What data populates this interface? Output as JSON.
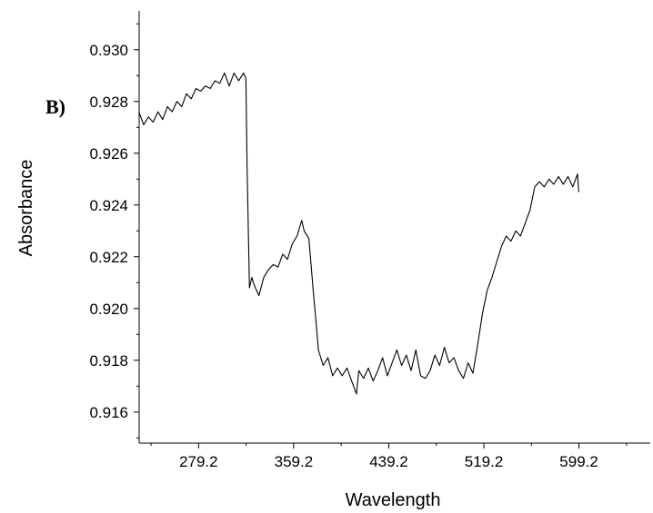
{
  "chart_data": {
    "type": "line",
    "title": "",
    "panel_label": "B)",
    "xlabel": "Wavelength",
    "ylabel": "Absorbance",
    "xlim": [
      229.2,
      659.2
    ],
    "ylim": [
      0.9148,
      0.9315
    ],
    "xticks": [
      279.2,
      359.2,
      439.2,
      519.2,
      599.2
    ],
    "xtick_labels": [
      "279.2",
      "359.2",
      "439.2",
      "519.2",
      "599.2"
    ],
    "yticks": [
      0.916,
      0.918,
      0.92,
      0.922,
      0.924,
      0.926,
      0.928,
      0.93
    ],
    "ytick_labels": [
      "0.916",
      "0.918",
      "0.920",
      "0.922",
      "0.924",
      "0.926",
      "0.928",
      "0.930"
    ],
    "grid": false,
    "legend": "none",
    "line_color": "#000000",
    "series": [
      {
        "x": [
          229,
          233,
          237,
          241,
          245,
          249,
          253,
          257,
          261,
          265,
          269,
          273,
          277,
          281,
          285,
          289,
          293,
          297,
          301,
          305,
          309,
          313,
          317,
          319,
          320,
          322,
          324,
          326,
          330,
          334,
          338,
          342,
          346,
          350,
          354,
          358,
          362,
          366,
          368,
          372,
          376,
          378,
          380,
          384,
          388,
          392,
          396,
          400,
          404,
          408,
          412,
          414,
          418,
          422,
          426,
          430,
          434,
          438,
          442,
          446,
          450,
          454,
          458,
          462,
          466,
          470,
          474,
          478,
          482,
          486,
          490,
          494,
          498,
          502,
          506,
          510,
          514,
          518,
          522,
          526,
          530,
          534,
          538,
          542,
          546,
          550,
          554,
          558,
          562,
          566,
          570,
          574,
          578,
          582,
          586,
          590,
          594,
          598,
          599
        ],
        "y": [
          0.9276,
          0.9271,
          0.9274,
          0.9272,
          0.9276,
          0.9273,
          0.9278,
          0.9276,
          0.928,
          0.9278,
          0.9283,
          0.9281,
          0.9285,
          0.9284,
          0.9286,
          0.9285,
          0.9288,
          0.9287,
          0.9291,
          0.9286,
          0.9291,
          0.9288,
          0.9291,
          0.9289,
          0.9255,
          0.9208,
          0.9212,
          0.9209,
          0.9205,
          0.9212,
          0.9215,
          0.9217,
          0.9216,
          0.9221,
          0.9219,
          0.9225,
          0.9228,
          0.9234,
          0.923,
          0.9227,
          0.9205,
          0.9195,
          0.9184,
          0.9178,
          0.9181,
          0.9174,
          0.9177,
          0.9174,
          0.9177,
          0.9172,
          0.9167,
          0.9176,
          0.9173,
          0.9177,
          0.9172,
          0.9176,
          0.9181,
          0.9174,
          0.9179,
          0.9184,
          0.9178,
          0.9182,
          0.9176,
          0.9184,
          0.9174,
          0.9173,
          0.9176,
          0.9182,
          0.9178,
          0.9185,
          0.9179,
          0.9181,
          0.9176,
          0.9173,
          0.9179,
          0.9175,
          0.9186,
          0.9198,
          0.9207,
          0.9212,
          0.9218,
          0.9224,
          0.9228,
          0.9226,
          0.923,
          0.9228,
          0.9233,
          0.9238,
          0.9247,
          0.9249,
          0.9247,
          0.925,
          0.9248,
          0.9251,
          0.9248,
          0.9251,
          0.9247,
          0.9252,
          0.9245
        ]
      }
    ]
  }
}
